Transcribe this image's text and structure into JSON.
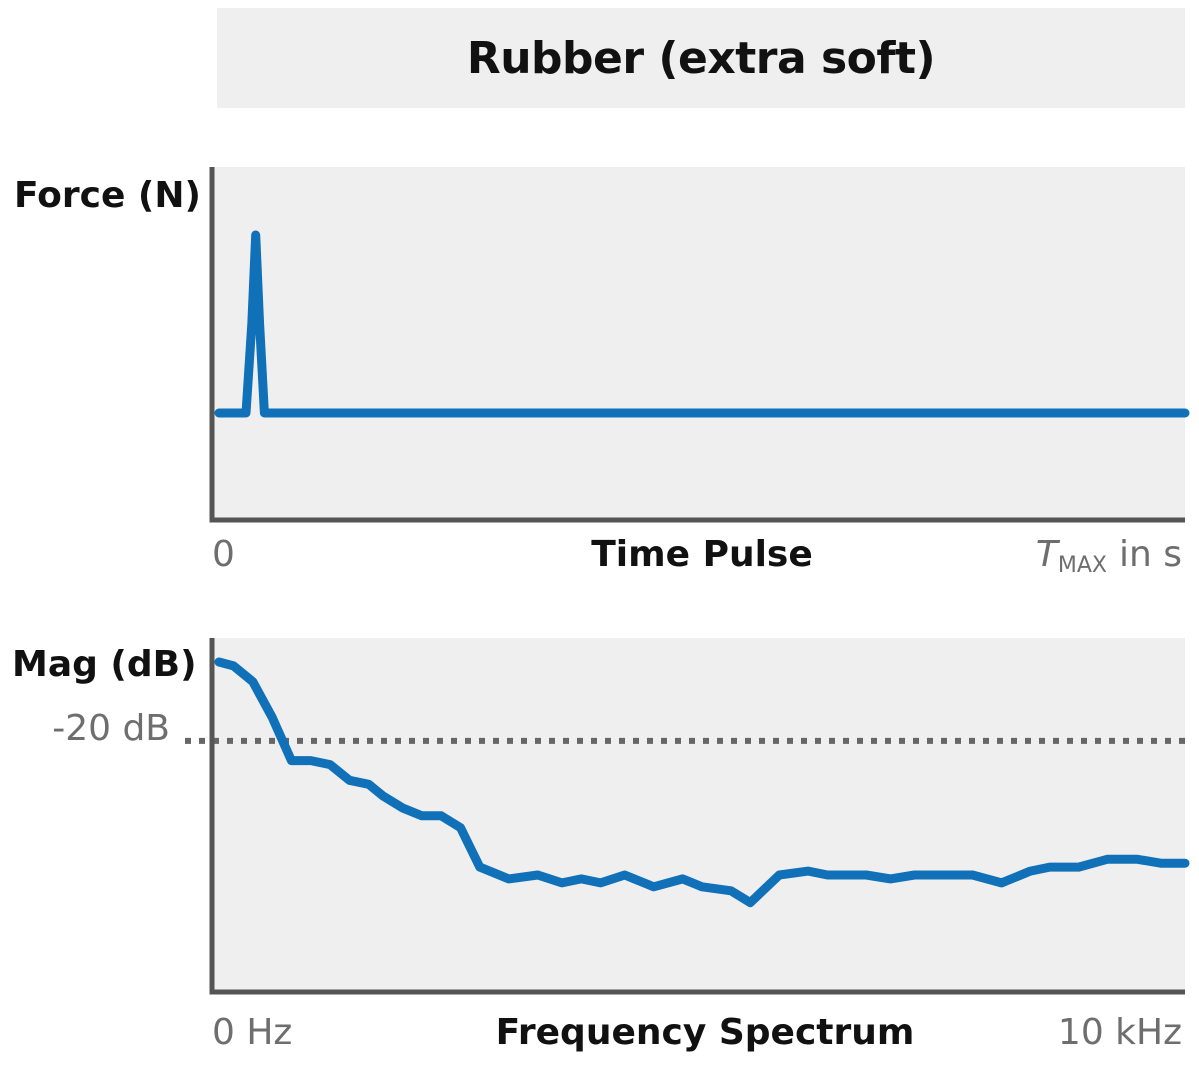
{
  "header": {
    "title": "Rubber (extra soft)"
  },
  "chart_data": [
    {
      "type": "line",
      "ylabel": "Force (N)",
      "xlabel": "Time Pulse",
      "x_tick_start": "0",
      "x_tick_end_symbol": "T",
      "x_tick_end_subscript": "MAX",
      "x_tick_end_unit": "in s",
      "xlim": [
        0,
        1
      ],
      "ylim": [
        0,
        1
      ],
      "grid": false,
      "series": [
        {
          "color": "#1070b8",
          "x": [
            0,
            0.028,
            0.034,
            0.038,
            0.042,
            0.047,
            0.058,
            1.0
          ],
          "y": [
            0.0,
            0.0,
            0.5,
            1.0,
            0.5,
            0.0,
            0.0,
            0.0
          ]
        }
      ]
    },
    {
      "type": "line",
      "ylabel": "Mag (dB)",
      "xlabel": "Frequency Spectrum",
      "x_tick_start": "0 Hz",
      "x_tick_end": "10 kHz",
      "reference_label": "-20 dB",
      "reference_value": -20,
      "xlim": [
        0,
        10
      ],
      "ylim": [
        -90,
        0
      ],
      "grid": false,
      "series": [
        {
          "color": "#1070b8",
          "x": [
            0.0,
            0.15,
            0.35,
            0.55,
            0.75,
            0.95,
            1.15,
            1.35,
            1.55,
            1.7,
            1.9,
            2.1,
            2.3,
            2.5,
            2.7,
            3.0,
            3.3,
            3.55,
            3.75,
            3.95,
            4.2,
            4.5,
            4.8,
            5.0,
            5.3,
            5.5,
            5.8,
            6.1,
            6.3,
            6.5,
            6.7,
            6.95,
            7.2,
            7.5,
            7.8,
            8.1,
            8.4,
            8.6,
            8.9,
            9.2,
            9.5,
            9.75,
            10.0
          ],
          "y": [
            0.0,
            -1.0,
            -5.0,
            -14.0,
            -25.0,
            -25.0,
            -26.0,
            -30.0,
            -31.0,
            -34.0,
            -37.0,
            -39.0,
            -39.0,
            -42.0,
            -52.0,
            -55.0,
            -54.0,
            -56.0,
            -55.0,
            -56.0,
            -54.0,
            -57.0,
            -55.0,
            -57.0,
            -58.0,
            -61.0,
            -54.0,
            -53.0,
            -54.0,
            -54.0,
            -54.0,
            -55.0,
            -54.0,
            -54.0,
            -54.0,
            -56.0,
            -53.0,
            -52.0,
            -52.0,
            -50.0,
            -50.0,
            -51.0,
            -51.0
          ]
        }
      ]
    }
  ]
}
